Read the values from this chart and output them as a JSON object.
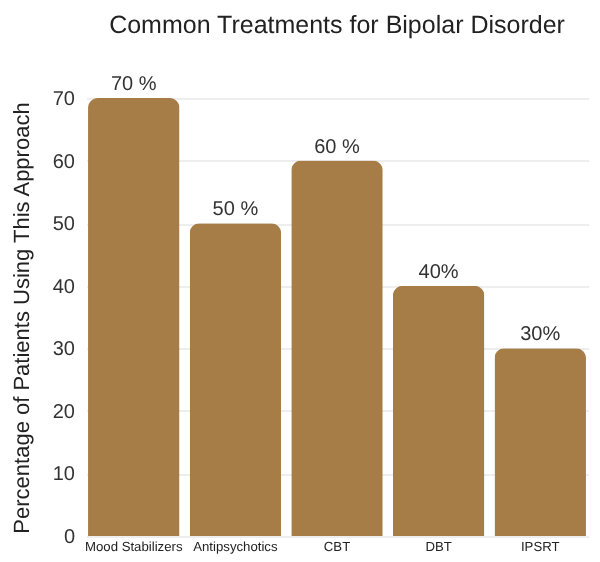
{
  "chart_data": {
    "type": "bar",
    "title": "Common Treatments for Bipolar Disorder",
    "ylabel": "Percentage of Patients Using This Approach",
    "categories": [
      "Mood Stabilizers",
      "Antipsychotics",
      "CBT",
      "DBT",
      "IPSRT"
    ],
    "values": [
      70,
      50,
      60,
      40,
      30
    ],
    "value_labels": [
      "70 %",
      "50 %",
      "60 %",
      "40%",
      "30%"
    ],
    "color": "#a67c47",
    "ylim": [
      0,
      70
    ],
    "yticks": [
      0,
      10,
      20,
      30,
      40,
      50,
      60,
      70
    ],
    "grid": "y"
  }
}
